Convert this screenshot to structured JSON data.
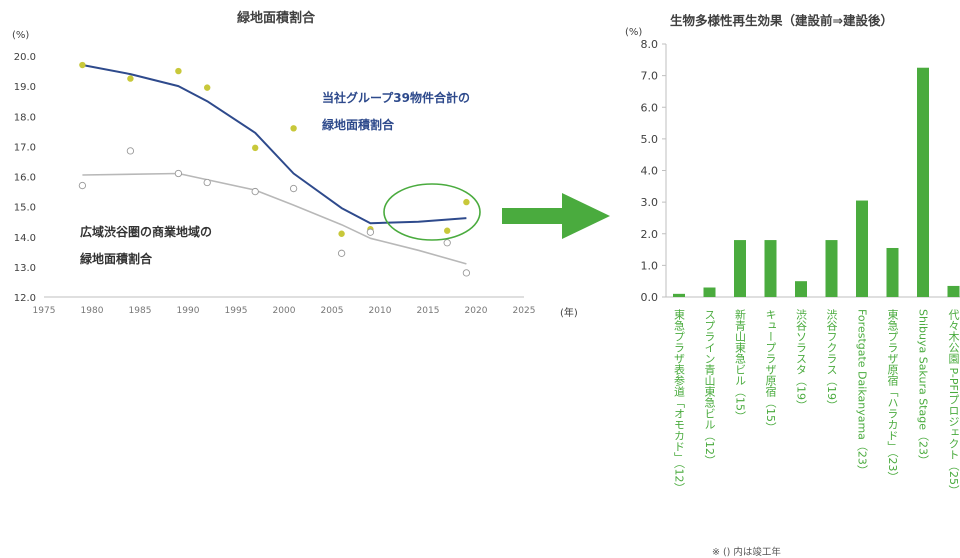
{
  "colors": {
    "blue_line": "#2e4a8c",
    "gray_line": "#b8b8b8",
    "yellow_point": "#c8c83a",
    "green": "#4aab3e",
    "axis": "#bfbfbf",
    "text": "#404040"
  },
  "chart_data": [
    {
      "type": "line",
      "title": "緑地面積割合",
      "yunit": "(%)",
      "xunit": "(年)",
      "xlim": [
        1975,
        2025
      ],
      "ylim": [
        12.0,
        20.0
      ],
      "xticks": [
        "1975",
        "1980",
        "1985",
        "1990",
        "1995",
        "2000",
        "2005",
        "2010",
        "2015",
        "2020",
        "2025"
      ],
      "yticks": [
        "12.0",
        "13.0",
        "14.0",
        "15.0",
        "16.0",
        "17.0",
        "18.0",
        "19.0",
        "20.0"
      ],
      "series": [
        {
          "name": "当社グループ39物件合計の緑地面積割合",
          "name_line1": "当社グループ39物件合計の",
          "name_line2": "緑地面積割合",
          "points": [
            [
              1979,
              19.7
            ],
            [
              1984,
              19.25
            ],
            [
              1989,
              19.5
            ],
            [
              1992,
              18.95
            ],
            [
              1997,
              16.95
            ],
            [
              2001,
              17.6
            ],
            [
              2006,
              14.1
            ],
            [
              2009,
              14.25
            ],
            [
              2017,
              14.2
            ],
            [
              2019,
              15.15
            ]
          ],
          "trend": [
            [
              1979,
              19.7
            ],
            [
              1984,
              19.4
            ],
            [
              1989,
              19.0
            ],
            [
              1992,
              18.5
            ],
            [
              1997,
              17.45
            ],
            [
              2001,
              16.1
            ],
            [
              2006,
              14.95
            ],
            [
              2009,
              14.45
            ],
            [
              2014,
              14.5
            ],
            [
              2019,
              14.62
            ]
          ]
        },
        {
          "name": "広域渋谷圏の商業地域の緑地面積割合",
          "name_line1": "広域渋谷圏の商業地域の",
          "name_line2": "緑地面積割合",
          "points": [
            [
              1979,
              15.7
            ],
            [
              1984,
              16.85
            ],
            [
              1989,
              16.1
            ],
            [
              1992,
              15.8
            ],
            [
              1997,
              15.5
            ],
            [
              2001,
              15.6
            ],
            [
              2006,
              13.45
            ],
            [
              2009,
              14.15
            ],
            [
              2017,
              13.8
            ],
            [
              2019,
              12.8
            ]
          ],
          "trend": [
            [
              1979,
              16.05
            ],
            [
              1989,
              16.1
            ],
            [
              1997,
              15.55
            ],
            [
              2001,
              15.05
            ],
            [
              2006,
              14.4
            ],
            [
              2009,
              13.95
            ],
            [
              2014,
              13.55
            ],
            [
              2019,
              13.1
            ]
          ]
        }
      ]
    },
    {
      "type": "bar",
      "title": "生物多様性再生効果（建設前⇒建設後）",
      "yunit": "(%)",
      "ylim": [
        0.0,
        8.0
      ],
      "yticks": [
        "0.0",
        "1.0",
        "2.0",
        "3.0",
        "4.0",
        "5.0",
        "6.0",
        "7.0",
        "8.0"
      ],
      "categories": [
        "東急プラザ表参道「オモカド」（12）",
        "スプライン青山東急ビル（12）",
        "新青山東急ビル（15）",
        "キュープラザ原宿（15）",
        "渋谷ソラスタ（19）",
        "渋谷フクラス（19）",
        "Forestgate Daikanyama（23）",
        "東急プラザ原宿「ハラカド」（23）",
        "Shibuya Sakura Stage（23）",
        "代々木公園 P-PFIプロジェクト（25）"
      ],
      "values": [
        0.1,
        0.3,
        1.8,
        1.8,
        0.5,
        1.8,
        3.05,
        1.55,
        7.25,
        0.35
      ],
      "footnote": "※ () 内は竣工年"
    }
  ]
}
